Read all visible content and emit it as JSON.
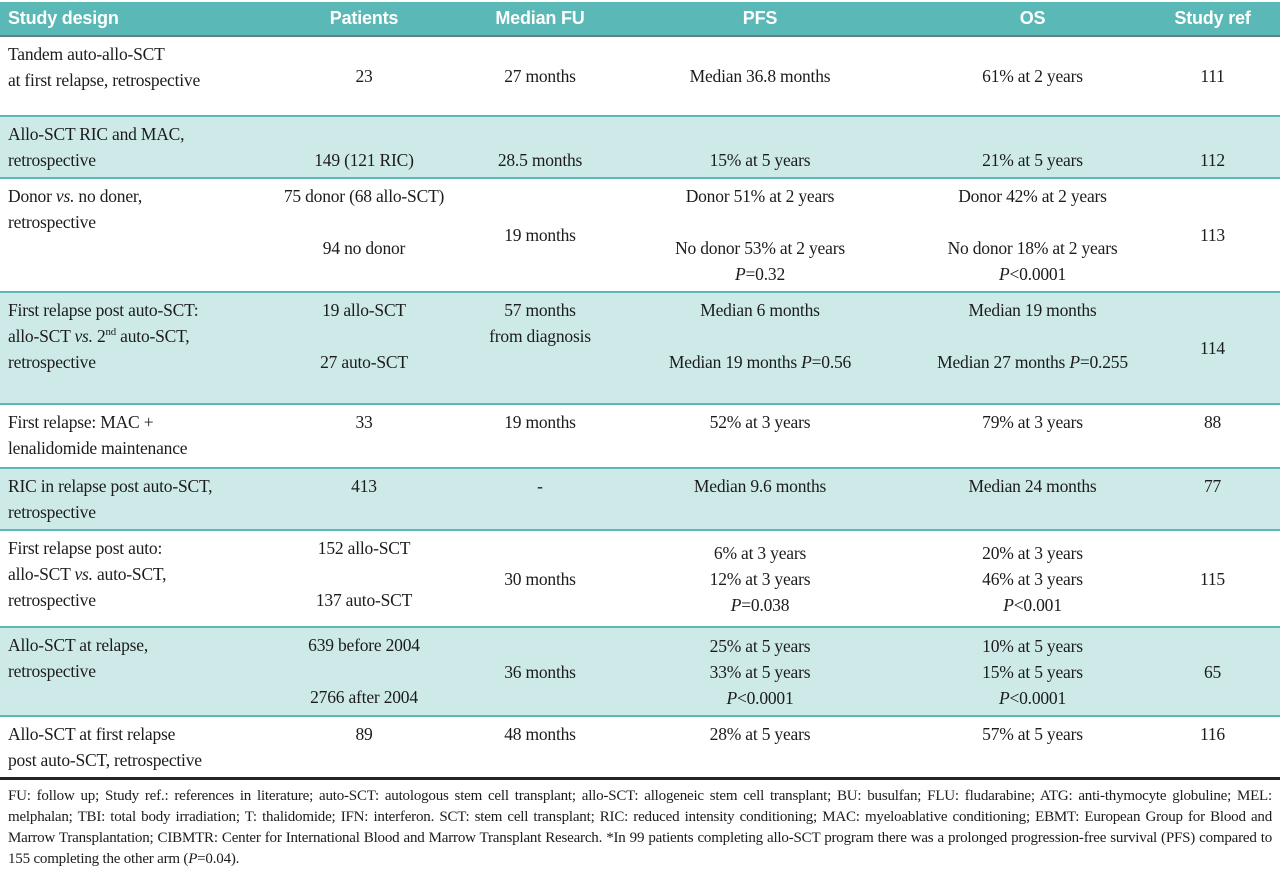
{
  "colors": {
    "header_bg": "#5ab8b6",
    "header_text": "#ffffff",
    "row_alt_bg": "#cdeae9",
    "separator": "#5ab8b6",
    "body_text": "#1c1c1c"
  },
  "table": {
    "columns": [
      {
        "key": "design",
        "label": "Study design"
      },
      {
        "key": "patients",
        "label": "Patients"
      },
      {
        "key": "median_fu",
        "label": "Median FU"
      },
      {
        "key": "pfs",
        "label": "PFS"
      },
      {
        "key": "os",
        "label": "OS"
      },
      {
        "key": "ref",
        "label": "Study ref"
      }
    ],
    "rows": [
      {
        "design": {
          "align": "top",
          "lines": [
            "Tandem auto-allo-SCT",
            "at first relapse, retrospective"
          ]
        },
        "patients": {
          "align": "mid",
          "lines": [
            "23"
          ]
        },
        "median_fu": {
          "align": "mid",
          "lines": [
            "27 months"
          ]
        },
        "pfs": {
          "align": "mid",
          "lines": [
            "Median 36.8 months"
          ]
        },
        "os": {
          "align": "mid",
          "lines": [
            "61% at 2 years"
          ]
        },
        "ref": {
          "align": "mid",
          "lines": [
            "111"
          ]
        }
      },
      {
        "design": {
          "align": "top",
          "lines": [
            "Allo-SCT RIC and MAC,",
            "retrospective"
          ]
        },
        "patients": {
          "align": "bot",
          "lines": [
            "149 (121 RIC)"
          ]
        },
        "median_fu": {
          "align": "bot",
          "lines": [
            "28.5 months"
          ]
        },
        "pfs": {
          "align": "bot",
          "lines": [
            "15% at 5 years"
          ]
        },
        "os": {
          "align": "bot",
          "lines": [
            "21% at 5 years"
          ]
        },
        "ref": {
          "align": "bot",
          "lines": [
            "112"
          ]
        }
      },
      {
        "design": {
          "align": "top",
          "lines": [
            "Donor {i}vs.{/i} no doner,",
            "retrospective"
          ]
        },
        "patients": {
          "align": "top",
          "lines": [
            "75 donor (68 allo-SCT)",
            "",
            "94 no donor"
          ]
        },
        "median_fu": {
          "align": "mid",
          "lines": [
            "19 months"
          ]
        },
        "pfs": {
          "align": "top",
          "lines": [
            "Donor 51% at 2 years",
            "",
            "No donor 53% at 2 years",
            "{i}P{/i}=0.32"
          ]
        },
        "os": {
          "align": "top",
          "lines": [
            "Donor 42% at 2 years",
            "",
            "No donor 18% at 2 years",
            "{i}P{/i}<0.0001"
          ]
        },
        "ref": {
          "align": "mid",
          "lines": [
            "113"
          ]
        }
      },
      {
        "design": {
          "align": "top",
          "lines": [
            "First relapse post auto-SCT:",
            "allo-SCT {i}vs.{/i} 2{sup}nd{/sup} auto-SCT,",
            "retrospective"
          ]
        },
        "patients": {
          "align": "top",
          "lines": [
            "19 allo-SCT",
            "",
            "27 auto-SCT"
          ]
        },
        "median_fu": {
          "align": "top",
          "lines": [
            "57 months",
            "from diagnosis"
          ]
        },
        "pfs": {
          "align": "top",
          "lines": [
            "Median 6 months",
            "",
            "Median 19 months {i}P{/i}=0.56"
          ]
        },
        "os": {
          "align": "top",
          "lines": [
            "Median 19 months",
            "",
            "Median 27 months {i}P{/i}=0.255"
          ]
        },
        "ref": {
          "align": "mid",
          "lines": [
            "114"
          ]
        }
      },
      {
        "design": {
          "align": "top",
          "lines": [
            "First relapse: MAC +",
            "lenalidomide maintenance"
          ]
        },
        "patients": {
          "align": "top",
          "lines": [
            "33"
          ]
        },
        "median_fu": {
          "align": "top",
          "lines": [
            "19 months"
          ]
        },
        "pfs": {
          "align": "top",
          "lines": [
            "52% at 3 years"
          ]
        },
        "os": {
          "align": "top",
          "lines": [
            "79% at 3 years"
          ]
        },
        "ref": {
          "align": "top",
          "lines": [
            "88"
          ]
        }
      },
      {
        "design": {
          "align": "top",
          "lines": [
            "RIC in relapse post auto-SCT,",
            "retrospective"
          ]
        },
        "patients": {
          "align": "top",
          "lines": [
            "413"
          ]
        },
        "median_fu": {
          "align": "top",
          "lines": [
            "-"
          ]
        },
        "pfs": {
          "align": "top",
          "lines": [
            "Median 9.6 months"
          ]
        },
        "os": {
          "align": "top",
          "lines": [
            "Median 24 months"
          ]
        },
        "ref": {
          "align": "top",
          "lines": [
            "77"
          ]
        }
      },
      {
        "design": {
          "align": "top",
          "lines": [
            "First relapse post auto:",
            "allo-SCT {i}vs.{/i} auto-SCT,",
            "retrospective"
          ]
        },
        "patients": {
          "align": "top",
          "lines": [
            "152 allo-SCT",
            "",
            "137 auto-SCT"
          ]
        },
        "median_fu": {
          "align": "mid",
          "lines": [
            "30 months"
          ]
        },
        "pfs": {
          "align": "mid",
          "lines": [
            "6% at 3 years",
            "12% at 3 years",
            "{i}P{/i}=0.038"
          ]
        },
        "os": {
          "align": "mid",
          "lines": [
            "20% at 3 years",
            "46% at 3 years",
            "{i}P{/i}<0.001"
          ]
        },
        "ref": {
          "align": "mid",
          "lines": [
            "115"
          ]
        }
      },
      {
        "design": {
          "align": "top",
          "lines": [
            "Allo-SCT at relapse,",
            "retrospective"
          ]
        },
        "patients": {
          "align": "top",
          "lines": [
            "639 before 2004",
            "",
            "2766 after 2004"
          ]
        },
        "median_fu": {
          "align": "mid",
          "lines": [
            "36 months"
          ]
        },
        "pfs": {
          "align": "mid",
          "lines": [
            "25% at 5 years",
            "33% at 5 years",
            "{i}P{/i}<0.0001"
          ]
        },
        "os": {
          "align": "mid",
          "lines": [
            "10% at 5 years",
            "15% at 5 years",
            "{i}P{/i}<0.0001"
          ]
        },
        "ref": {
          "align": "mid",
          "lines": [
            "65"
          ]
        }
      },
      {
        "design": {
          "align": "top",
          "lines": [
            "Allo-SCT at first relapse",
            "post auto-SCT, retrospective"
          ]
        },
        "patients": {
          "align": "top",
          "lines": [
            "89"
          ]
        },
        "median_fu": {
          "align": "top",
          "lines": [
            "48 months"
          ]
        },
        "pfs": {
          "align": "top",
          "lines": [
            "28% at 5 years"
          ]
        },
        "os": {
          "align": "top",
          "lines": [
            "57% at 5 years"
          ]
        },
        "ref": {
          "align": "top",
          "lines": [
            "116"
          ]
        }
      }
    ]
  },
  "footnote": {
    "text": "FU: follow up; Study ref.: references in literature; auto-SCT: autologous stem cell transplant; allo-SCT: allogeneic stem cell transplant; BU: busulfan; FLU: fludarabine; ATG: anti-thymocyte globuline; MEL: melphalan; TBI: total body irradiation; T: thalidomide; IFN: interferon. SCT: stem cell transplant; RIC: reduced intensity conditioning; MAC: myeloablative conditioning; EBMT: European Group for Blood and Marrow Transplantation; CIBMTR: Center for International Blood and Marrow Transplant Research. *In 99 patients completing allo-SCT program there was a prolonged progression-free survival (PFS) compared to 155 completing the other arm ({i}P{/i}=0.04)."
  }
}
